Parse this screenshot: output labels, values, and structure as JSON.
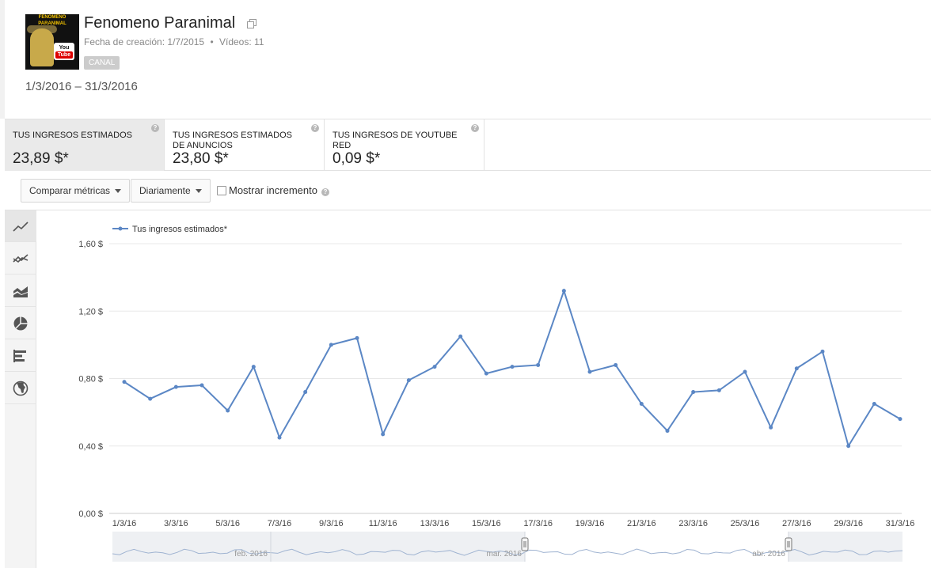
{
  "channel": {
    "name": "Fenomeno Paranimal",
    "thumb_text_top": "FENOMENO PARANIMAL",
    "thumb_logo_top": "You",
    "thumb_logo_bottom": "Tube",
    "created_label": "Fecha de creación: 1/7/2015",
    "separator": "•",
    "videos_label": "Vídeos: 11",
    "badge": "CANAL",
    "icons": {
      "external": "external-link-icon"
    }
  },
  "date_range": "1/3/2016 – 31/3/2016",
  "metrics": [
    {
      "label": "TUS INGRESOS ESTIMADOS",
      "value": "23,89 $*",
      "active": true
    },
    {
      "label": "TUS INGRESOS ESTIMADOS DE ANUNCIOS",
      "value": "23,80 $*",
      "active": false
    },
    {
      "label": "TUS INGRESOS DE YOUTUBE RED",
      "value": "0,09 $*",
      "active": false
    }
  ],
  "help_glyph": "?",
  "toolbar": {
    "compare_label": "Comparar métricas",
    "interval_label": "Diariamente",
    "increment_label": "Mostrar incremento"
  },
  "side_icons": [
    "line-chart-icon",
    "multi-line-chart-icon",
    "stacked-area-chart-icon",
    "pie-chart-icon",
    "bar-chart-icon",
    "globe-map-icon"
  ],
  "colors": {
    "series": "#5b87c5",
    "grid": "#e8e8e8",
    "active_tab": "#eaeaea"
  },
  "chart_data": {
    "type": "line",
    "title": "",
    "xlabel": "",
    "ylabel": "",
    "legend_position": "top-left",
    "grid": true,
    "ylim": [
      0,
      1.6
    ],
    "y_ticks": [
      "0,00 $",
      "0,40 $",
      "0,80 $",
      "1,20 $",
      "1,60 $"
    ],
    "x_ticks": [
      "1/3/16",
      "3/3/16",
      "5/3/16",
      "7/3/16",
      "9/3/16",
      "11/3/16",
      "13/3/16",
      "15/3/16",
      "17/3/16",
      "19/3/16",
      "21/3/16",
      "23/3/16",
      "25/3/16",
      "27/3/16",
      "29/3/16",
      "31/3/16"
    ],
    "series": [
      {
        "name": "Tus ingresos estimados*",
        "values": [
          0.78,
          0.68,
          0.75,
          0.76,
          0.61,
          0.87,
          0.45,
          0.72,
          1.0,
          1.04,
          0.47,
          0.79,
          0.87,
          1.05,
          0.83,
          0.87,
          0.88,
          1.32,
          0.84,
          0.88,
          0.65,
          0.49,
          0.72,
          0.73,
          0.84,
          0.51,
          0.86,
          0.96,
          0.4,
          0.65,
          0.56
        ]
      }
    ],
    "navigator": {
      "labels": [
        "feb. 2016",
        "mar. 2016",
        "abr. 2016"
      ]
    }
  }
}
